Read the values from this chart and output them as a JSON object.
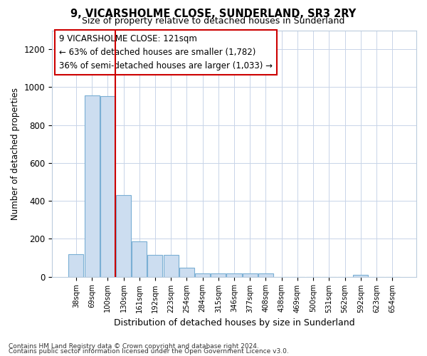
{
  "title": "9, VICARSHOLME CLOSE, SUNDERLAND, SR3 2RY",
  "subtitle": "Size of property relative to detached houses in Sunderland",
  "xlabel": "Distribution of detached houses by size in Sunderland",
  "ylabel": "Number of detached properties",
  "categories": [
    "38sqm",
    "69sqm",
    "100sqm",
    "130sqm",
    "161sqm",
    "192sqm",
    "223sqm",
    "254sqm",
    "284sqm",
    "315sqm",
    "346sqm",
    "377sqm",
    "408sqm",
    "438sqm",
    "469sqm",
    "500sqm",
    "531sqm",
    "562sqm",
    "592sqm",
    "623sqm",
    "654sqm"
  ],
  "values": [
    120,
    955,
    952,
    430,
    185,
    115,
    115,
    48,
    18,
    18,
    18,
    18,
    18,
    0,
    0,
    0,
    0,
    0,
    8,
    0,
    0
  ],
  "bar_color": "#ccddf0",
  "bar_edge_color": "#7aafd4",
  "vline_x": 2.5,
  "vline_color": "#cc0000",
  "annotation_text": "9 VICARSHOLME CLOSE: 121sqm\n← 63% of detached houses are smaller (1,782)\n36% of semi-detached houses are larger (1,033) →",
  "annotation_box_color": "#ffffff",
  "annotation_box_edge": "#cc0000",
  "ylim": [
    0,
    1300
  ],
  "yticks": [
    0,
    200,
    400,
    600,
    800,
    1000,
    1200
  ],
  "footer1": "Contains HM Land Registry data © Crown copyright and database right 2024.",
  "footer2": "Contains public sector information licensed under the Open Government Licence v3.0.",
  "bg_color": "#ffffff",
  "grid_color": "#c8d4e8"
}
